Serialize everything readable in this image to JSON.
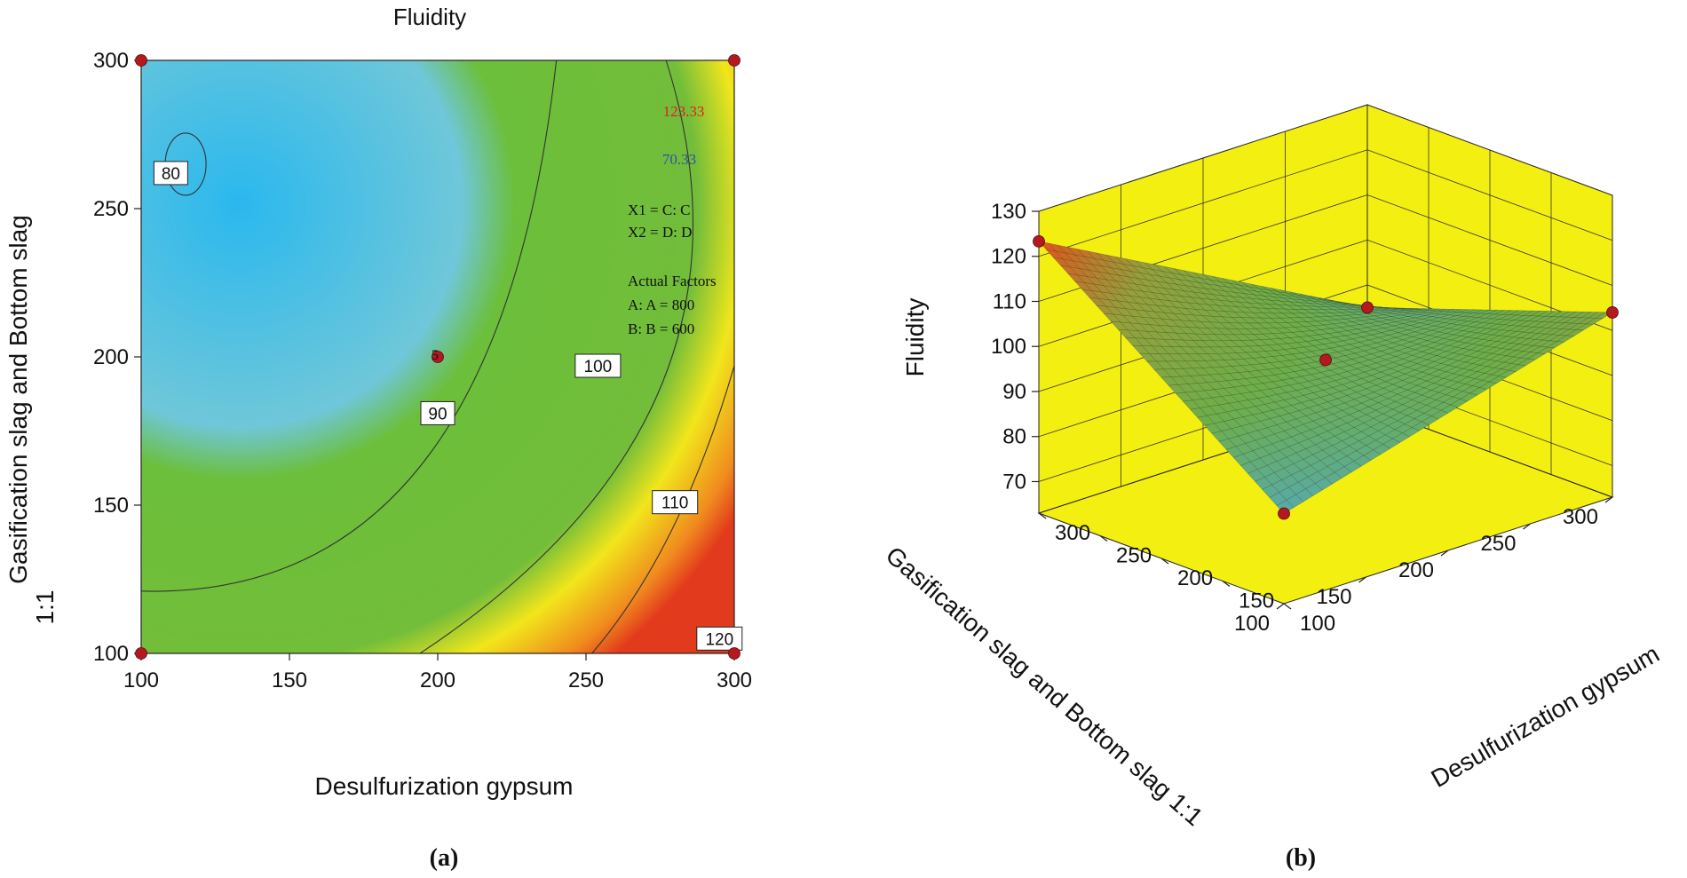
{
  "chart_data": [
    {
      "panel": "a",
      "type": "contour",
      "title": "Fluidity",
      "xlabel": "Desulfurization gypsum",
      "ylabel_line1": "Gasification slag and Bottom slag",
      "ylabel_line2": "1:1",
      "xlim": [
        100,
        300
      ],
      "ylim": [
        100,
        300
      ],
      "x_ticks": [
        "100",
        "150",
        "200",
        "250",
        "300"
      ],
      "y_ticks": [
        "100",
        "150",
        "200",
        "250",
        "300"
      ],
      "contour_levels": [
        80,
        90,
        100,
        110,
        120
      ],
      "contour_labels": [
        "80",
        "90",
        "100",
        "110",
        "120"
      ],
      "range_max_label": "123.33",
      "range_min_label": "70.33",
      "factor_lines": [
        "X1 = C: C",
        "X2 = D: D"
      ],
      "actual_factors_title": "Actual Factors",
      "actual_factor_lines": [
        "A: A = 800",
        "B: B = 600"
      ],
      "design_points": [
        [
          100,
          300
        ],
        [
          300,
          300
        ],
        [
          100,
          100
        ],
        [
          300,
          100
        ],
        [
          200,
          200
        ]
      ],
      "center_point_count_label": "5",
      "colors": {
        "low": "#2ab8ee",
        "mid": "#6cbf3a",
        "high_yellow": "#f1e61b",
        "high": "#e8401c",
        "max_label": "#e0201c",
        "min_label": "#3050a8",
        "point": "#b3191e"
      }
    },
    {
      "panel": "b",
      "type": "surface3d",
      "zlabel": "Fluidity",
      "xlabel": "Desulfurization gypsum",
      "ylabel": "Gasification slag and Bottom slag 1:1",
      "z_ticks": [
        "70",
        "80",
        "90",
        "100",
        "110",
        "120",
        "130"
      ],
      "x_ticks": [
        "100",
        "150",
        "200",
        "250",
        "300"
      ],
      "y_ticks": [
        "100",
        "150",
        "200",
        "250",
        "300"
      ],
      "zlim": [
        63,
        130
      ],
      "corner_values": {
        "x100_y100": 83,
        "x300_y100": 123.33,
        "x100_y300": 104,
        "x300_y300": 85
      },
      "colors": {
        "wall": "#f3ef10",
        "surface_low": "#4aa8e6",
        "surface_mid": "#6fae4a",
        "surface_high": "#e3541d",
        "point": "#b3191e"
      }
    }
  ],
  "captions": {
    "a": "(a)",
    "b": "(b)"
  }
}
